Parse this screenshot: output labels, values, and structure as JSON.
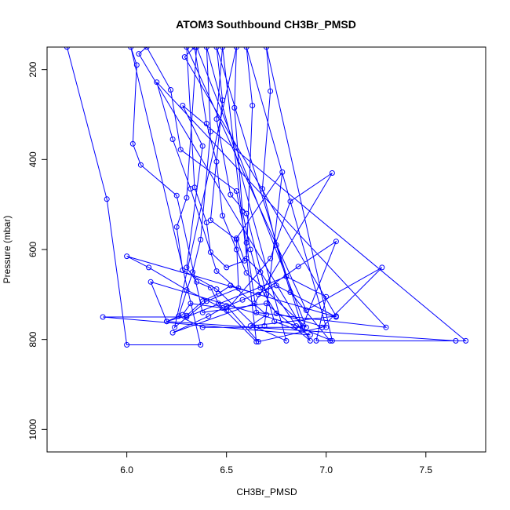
{
  "chart_data": {
    "type": "line",
    "title": "ATOM3 Southbound CH3Br_PMSD",
    "xlabel": "CH3Br_PMSD",
    "ylabel": "Pressure (mbar)",
    "xlim": [
      5.6,
      7.8
    ],
    "ylim": [
      1050,
      150
    ],
    "y_reversed": true,
    "x_ticks": [
      "6.0",
      "6.5",
      "7.0",
      "7.5"
    ],
    "y_ticks": [
      "200",
      "400",
      "600",
      "800",
      "1000"
    ],
    "grid": false,
    "legend": "none",
    "series": [
      {
        "style": "lines+markers",
        "color": "#0000ff",
        "marker": "open-circle",
        "points": [
          [
            5.7,
            150
          ],
          [
            5.9,
            488
          ],
          [
            6.0,
            812
          ],
          [
            6.37,
            812
          ],
          [
            6.02,
            150
          ],
          [
            6.05,
            190
          ],
          [
            6.03,
            365
          ],
          [
            6.07,
            412
          ],
          [
            6.25,
            480
          ],
          [
            6.38,
            740
          ],
          [
            6.7,
            720
          ],
          [
            6.92,
            803
          ],
          [
            6.06,
            165
          ],
          [
            6.1,
            150
          ],
          [
            6.22,
            245
          ],
          [
            6.27,
            378
          ],
          [
            6.55,
            470
          ],
          [
            6.6,
            585
          ],
          [
            6.65,
            740
          ],
          [
            7.3,
            773
          ],
          [
            6.15,
            228
          ],
          [
            6.23,
            355
          ],
          [
            6.32,
            465
          ],
          [
            6.45,
            648
          ],
          [
            6.7,
            745
          ],
          [
            6.62,
            770
          ],
          [
            7.05,
            748
          ],
          [
            6.29,
            172
          ],
          [
            6.34,
            150
          ],
          [
            6.4,
            320
          ],
          [
            6.45,
            405
          ],
          [
            6.48,
            525
          ],
          [
            6.55,
            600
          ],
          [
            6.6,
            652
          ],
          [
            6.9,
            773
          ],
          [
            6.35,
            150
          ],
          [
            6.3,
            485
          ],
          [
            6.25,
            550
          ],
          [
            6.28,
            646
          ],
          [
            6.45,
            688
          ],
          [
            6.65,
            773
          ],
          [
            6.8,
            803
          ],
          [
            6.4,
            150
          ],
          [
            6.42,
            338
          ],
          [
            6.37,
            578
          ],
          [
            6.33,
            650
          ],
          [
            6.26,
            748
          ],
          [
            6.38,
            773
          ],
          [
            6.88,
            773
          ],
          [
            6.45,
            150
          ],
          [
            6.48,
            268
          ],
          [
            6.42,
            535
          ],
          [
            6.55,
            578
          ],
          [
            6.56,
            686
          ],
          [
            6.4,
            715
          ],
          [
            6.24,
            773
          ],
          [
            6.55,
            150
          ],
          [
            6.54,
            285
          ],
          [
            6.58,
            515
          ],
          [
            6.62,
            600
          ],
          [
            6.67,
            685
          ],
          [
            6.75,
            742
          ],
          [
            7.0,
            773
          ],
          [
            6.6,
            150
          ],
          [
            6.63,
            280
          ],
          [
            6.6,
            620
          ],
          [
            6.67,
            650
          ],
          [
            6.85,
            770
          ],
          [
            7.03,
            803
          ],
          [
            6.7,
            150
          ],
          [
            6.72,
            248
          ],
          [
            6.68,
            465
          ],
          [
            6.75,
            590
          ],
          [
            6.82,
            695
          ],
          [
            7.02,
            803
          ],
          [
            7.7,
            803
          ],
          [
            6.28,
            280
          ],
          [
            6.38,
            370
          ],
          [
            6.3,
            640
          ],
          [
            6.35,
            672
          ],
          [
            6.42,
            685
          ],
          [
            6.46,
            720
          ],
          [
            6.65,
            805
          ],
          [
            6.48,
            150
          ],
          [
            6.45,
            310
          ],
          [
            6.52,
            478
          ],
          [
            6.6,
            520
          ],
          [
            6.7,
            700
          ],
          [
            6.74,
            760
          ],
          [
            6.92,
            790
          ],
          [
            5.88,
            750
          ],
          [
            6.3,
            750
          ],
          [
            6.8,
            660
          ],
          [
            7.0,
            705
          ],
          [
            6.95,
            803
          ],
          [
            7.65,
            803
          ],
          [
            6.2,
            760
          ],
          [
            6.3,
            747
          ],
          [
            6.38,
            715
          ],
          [
            6.46,
            698
          ],
          [
            6.52,
            680
          ],
          [
            6.66,
            700
          ],
          [
            6.86,
            638
          ],
          [
            7.05,
            582
          ],
          [
            6.88,
            773
          ],
          [
            6.12,
            672
          ],
          [
            6.2,
            760
          ],
          [
            6.28,
            745
          ],
          [
            6.32,
            720
          ],
          [
            6.48,
            730
          ],
          [
            6.58,
            712
          ],
          [
            6.75,
            680
          ],
          [
            7.05,
            750
          ],
          [
            6.0,
            615
          ],
          [
            6.11,
            640
          ],
          [
            6.3,
            690
          ],
          [
            6.5,
            735
          ],
          [
            6.72,
            620
          ],
          [
            6.82,
            493
          ],
          [
            7.03,
            430
          ],
          [
            6.64,
            720
          ],
          [
            6.23,
            785
          ],
          [
            6.41,
            748
          ],
          [
            6.5,
            725
          ],
          [
            6.66,
            805
          ],
          [
            6.98,
            773
          ],
          [
            7.28,
            640
          ],
          [
            6.9,
            735
          ],
          [
            6.3,
            150
          ],
          [
            6.34,
            462
          ],
          [
            6.4,
            540
          ],
          [
            6.42,
            606
          ],
          [
            6.5,
            640
          ],
          [
            6.59,
            625
          ],
          [
            6.55,
            575
          ],
          [
            6.78,
            428
          ],
          [
            6.69,
            770
          ]
        ]
      }
    ]
  }
}
